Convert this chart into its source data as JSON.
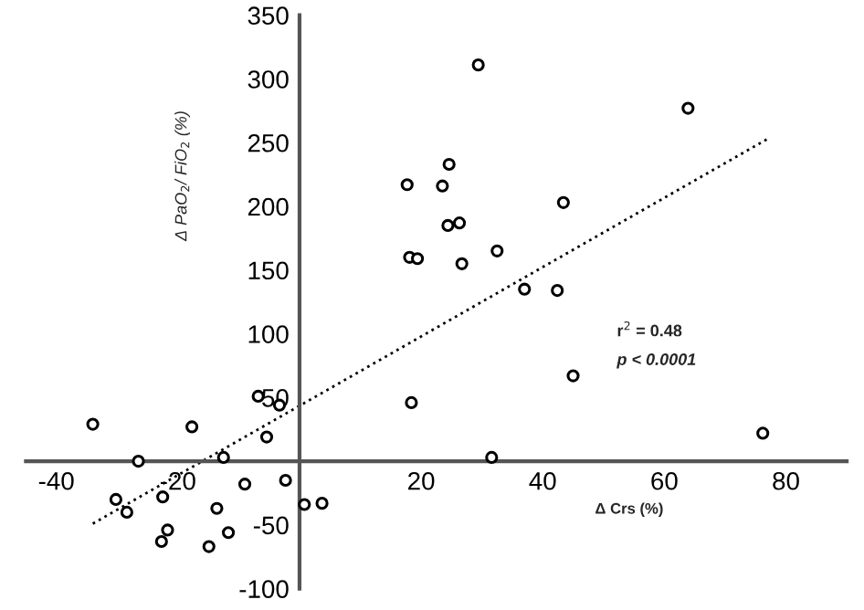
{
  "chart_data": {
    "type": "scatter",
    "xlabel": "Δ Crs (%)",
    "ylabel": "Δ PaO$_{2}$/ FiO$_{2}$ (%)",
    "series": [
      {
        "color": "#000000",
        "marker": "circle",
        "x": [
          -34.0,
          -26.5,
          -17.7,
          -6.8,
          -3.3,
          -5.4,
          -12.5,
          -9.0,
          -2.3,
          -30.2,
          -28.4,
          -22.5,
          -13.6,
          -21.7,
          -22.7,
          -11.7,
          -14.9,
          0.8,
          3.7,
          18.4,
          29.4,
          24.6,
          17.7,
          23.5,
          43.4,
          24.4,
          26.3,
          18.1,
          19.4,
          26.7,
          32.5,
          37.0,
          42.4,
          63.9,
          76.2,
          45.0,
          31.6
        ],
        "values": [
          29,
          0,
          27,
          51,
          44,
          19,
          3,
          -18,
          -15,
          -30,
          -40,
          -28,
          -37,
          -54,
          -63,
          -56,
          -67,
          -34,
          -33,
          46,
          311,
          233,
          217,
          216,
          203,
          185,
          187,
          160,
          159,
          155,
          165,
          135,
          134,
          277,
          22,
          67,
          3
        ]
      },
      {
        "type": "line",
        "color": "#000000",
        "line_style": "dotted",
        "x": [
          -34,
          77
        ],
        "values": [
          -49,
          253
        ]
      }
    ],
    "xlim": [
      -45,
      90
    ],
    "ylim": [
      -100,
      350
    ],
    "xticks": [
      -40,
      -20,
      20,
      40,
      60,
      80
    ],
    "yticks": [
      -100,
      -50,
      50,
      100,
      150,
      200,
      250,
      300,
      350
    ],
    "annotations": [
      "r$^{2}$ = 0.48",
      "p < 0.0001"
    ]
  }
}
